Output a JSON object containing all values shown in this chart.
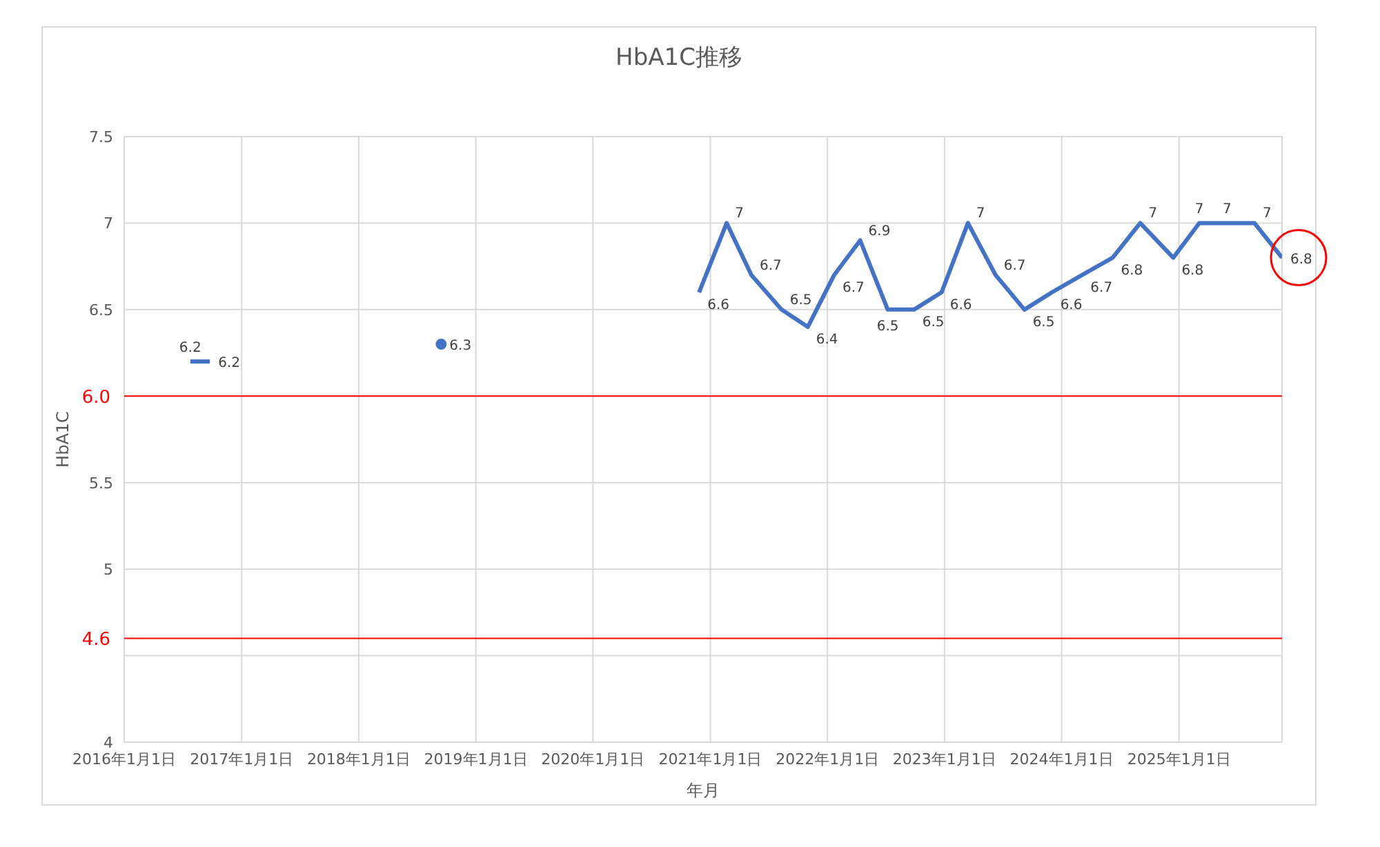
{
  "chart_data": {
    "type": "line",
    "title": "HbA1C推移",
    "xlabel": "年月",
    "ylabel": "HbA1C",
    "xlim": [
      "2016-01-01",
      "2025-11-18"
    ],
    "xticks": [
      {
        "value": "2016-01-01",
        "label": "2016年1月1日"
      },
      {
        "value": "2017-01-01",
        "label": "2017年1月1日"
      },
      {
        "value": "2018-01-01",
        "label": "2018年1月1日"
      },
      {
        "value": "2019-01-01",
        "label": "2019年1月1日"
      },
      {
        "value": "2020-01-01",
        "label": "2020年1月1日"
      },
      {
        "value": "2021-01-01",
        "label": "2021年1月1日"
      },
      {
        "value": "2022-01-01",
        "label": "2022年1月1日"
      },
      {
        "value": "2023-01-01",
        "label": "2023年1月1日"
      },
      {
        "value": "2024-01-01",
        "label": "2024年1月1日"
      },
      {
        "value": "2025-01-01",
        "label": "2025年1月1日"
      }
    ],
    "ylim": [
      4,
      7.5
    ],
    "yticks": [
      4,
      {
        "value": 4.5,
        "label": null
      },
      5,
      5.5,
      {
        "value": 6,
        "label": null
      },
      6.5,
      7,
      7.5
    ],
    "grid": true,
    "data_labels": true,
    "line_style": "solid",
    "series": [
      {
        "color": "#4472c4",
        "x": [
          "2016-07-25",
          "2016-09-24"
        ],
        "values": [
          6.2,
          6.2
        ]
      },
      {
        "color": "#4472c4",
        "marker": "circle",
        "x": [
          "2018-09-15"
        ],
        "values": [
          6.3
        ]
      },
      {
        "color": "#4472c4",
        "x": [
          "2020-11-27",
          "2021-02-21",
          "2021-05-09",
          "2021-08-11",
          "2021-11-01",
          "2022-01-22",
          "2022-04-13",
          "2022-07-08",
          "2022-09-28",
          "2022-12-23",
          "2023-03-15",
          "2023-06-09",
          "2023-09-07",
          "2023-12-02",
          "2024-03-05",
          "2024-06-08",
          "2024-09-02",
          "2024-12-14",
          "2025-03-05",
          "2025-05-31",
          "2025-08-24",
          "2025-11-18"
        ],
        "values": [
          6.6,
          7,
          6.7,
          6.5,
          6.4,
          6.7,
          6.9,
          6.5,
          6.5,
          6.6,
          7,
          6.7,
          6.5,
          6.6,
          6.7,
          6.8,
          7,
          6.8,
          7,
          7,
          7,
          6.8
        ]
      }
    ],
    "ref_lines": [
      {
        "axis": "y",
        "value": 6.0,
        "label": "6.0",
        "color": "#ff0000"
      },
      {
        "axis": "y",
        "value": 4.6,
        "label": "4.6",
        "color": "#ff0000"
      }
    ]
  }
}
